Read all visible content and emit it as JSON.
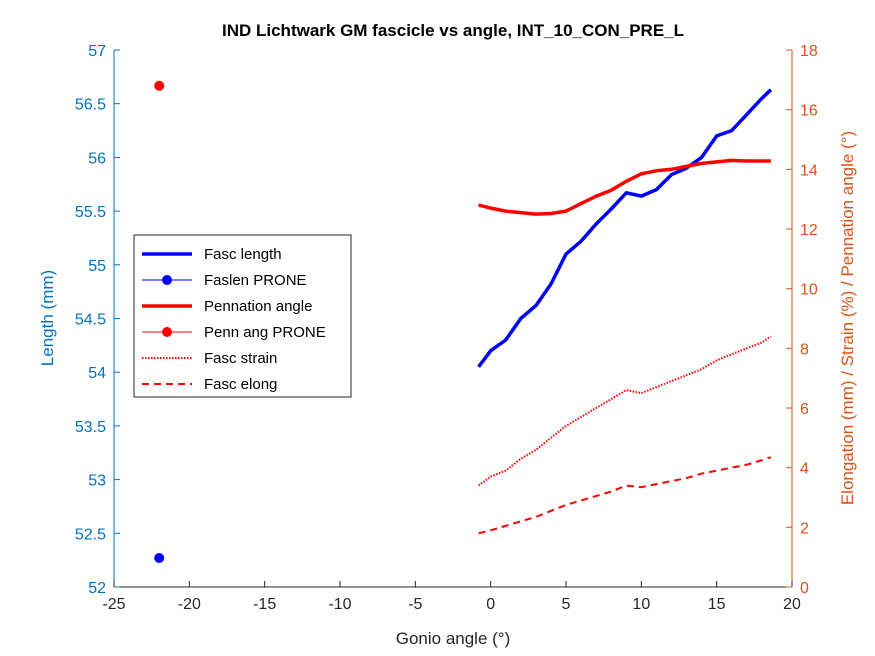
{
  "chart_data": {
    "type": "line",
    "title": "IND Lichtwark GM fascicle vs angle, INT_10_CON_PRE_L",
    "xlabel": "Gonio angle (°)",
    "ylabel_left": "Length (mm)",
    "ylabel_right": "Elongation (mm) / Strain (%) / Pennation angle (°)",
    "xlim": [
      -25,
      20
    ],
    "ylim_left": [
      52,
      57
    ],
    "ylim_right": [
      0,
      18
    ],
    "x_ticks": [
      "-25",
      "-20",
      "-15",
      "-10",
      "-5",
      "0",
      "5",
      "10",
      "15",
      "20"
    ],
    "y_left_ticks": [
      "52",
      "52.5",
      "53",
      "53.5",
      "54",
      "54.5",
      "55",
      "55.5",
      "56",
      "56.5",
      "57"
    ],
    "y_right_ticks": [
      "0",
      "2",
      "4",
      "6",
      "8",
      "10",
      "12",
      "14",
      "16",
      "18"
    ],
    "grid": false,
    "legend_position": "middle-left",
    "colors": {
      "left_axis": "#0072BD",
      "right_axis": "#D95319",
      "blue": "#0000FF",
      "red": "#FF0000"
    },
    "series": [
      {
        "name": "Fasc length",
        "axis": "left",
        "style": "solid-thick",
        "color": "#0000FF",
        "x": [
          -0.8,
          0,
          1,
          2,
          3,
          4,
          5,
          6,
          7,
          8,
          9,
          10,
          11,
          12,
          13,
          14,
          15,
          16,
          17,
          18,
          18.6
        ],
        "y": [
          54.05,
          54.2,
          54.3,
          54.5,
          54.62,
          54.82,
          55.1,
          55.22,
          55.38,
          55.52,
          55.67,
          55.64,
          55.7,
          55.84,
          55.9,
          56.0,
          56.2,
          56.25,
          56.4,
          56.55,
          56.63
        ]
      },
      {
        "name": "Faslen PRONE",
        "axis": "left",
        "style": "marker",
        "color": "#0000FF",
        "x": [
          -22
        ],
        "y": [
          52.27
        ]
      },
      {
        "name": "Pennation angle",
        "axis": "right",
        "style": "solid-thick",
        "color": "#FF0000",
        "x": [
          -0.8,
          0,
          1,
          2,
          3,
          4,
          5,
          6,
          7,
          8,
          9,
          10,
          11,
          12,
          13,
          14,
          15,
          16,
          17,
          18,
          18.6
        ],
        "y": [
          12.8,
          12.7,
          12.6,
          12.55,
          12.5,
          12.52,
          12.6,
          12.85,
          13.1,
          13.3,
          13.6,
          13.85,
          13.95,
          14.0,
          14.1,
          14.2,
          14.25,
          14.3,
          14.28,
          14.28,
          14.28
        ]
      },
      {
        "name": "Penn ang PRONE",
        "axis": "right",
        "style": "marker",
        "color": "#FF0000",
        "x": [
          -22
        ],
        "y": [
          16.8
        ]
      },
      {
        "name": "Fasc strain",
        "axis": "right",
        "style": "dotted",
        "color": "#FF0000",
        "x": [
          -0.8,
          0,
          1,
          2,
          3,
          4,
          5,
          6,
          7,
          8,
          9,
          10,
          11,
          12,
          13,
          14,
          15,
          16,
          17,
          18,
          18.6
        ],
        "y": [
          3.4,
          3.7,
          3.9,
          4.3,
          4.6,
          5.0,
          5.4,
          5.7,
          6.0,
          6.3,
          6.6,
          6.5,
          6.7,
          6.9,
          7.1,
          7.3,
          7.6,
          7.8,
          8.0,
          8.2,
          8.4
        ]
      },
      {
        "name": "Fasc elong",
        "axis": "right",
        "style": "dashed",
        "color": "#FF0000",
        "x": [
          -0.8,
          0,
          1,
          2,
          3,
          4,
          5,
          6,
          7,
          8,
          9,
          10,
          11,
          12,
          13,
          14,
          15,
          16,
          17,
          18,
          18.6
        ],
        "y": [
          1.8,
          1.9,
          2.05,
          2.2,
          2.35,
          2.55,
          2.75,
          2.9,
          3.05,
          3.2,
          3.4,
          3.35,
          3.45,
          3.55,
          3.65,
          3.8,
          3.9,
          4.0,
          4.1,
          4.25,
          4.35
        ]
      }
    ]
  }
}
